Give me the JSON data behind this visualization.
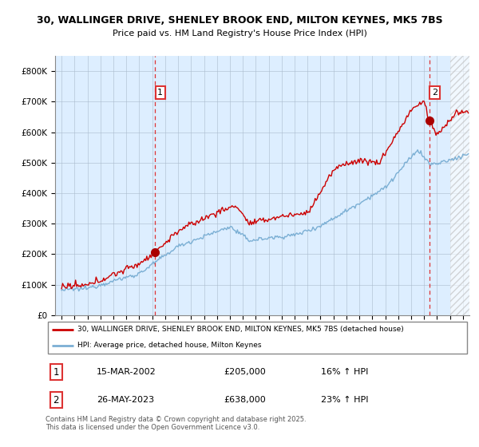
{
  "title_line1": "30, WALLINGER DRIVE, SHENLEY BROOK END, MILTON KEYNES, MK5 7BS",
  "title_line2": "Price paid vs. HM Land Registry's House Price Index (HPI)",
  "ylim": [
    0,
    850000
  ],
  "yticks": [
    0,
    100000,
    200000,
    300000,
    400000,
    500000,
    600000,
    700000,
    800000
  ],
  "ytick_labels": [
    "£0",
    "£100K",
    "£200K",
    "£300K",
    "£400K",
    "£500K",
    "£600K",
    "£700K",
    "£800K"
  ],
  "xlim_start": 1994.5,
  "xlim_end": 2026.5,
  "transaction1_x": 2002.21,
  "transaction1_y": 205000,
  "transaction1_label": "1",
  "transaction2_x": 2023.4,
  "transaction2_y": 638000,
  "transaction2_label": "2",
  "red_line_color": "#cc0000",
  "blue_line_color": "#7bafd4",
  "plot_bg_color": "#ddeeff",
  "grid_color": "#aabbcc",
  "background_color": "#ffffff",
  "legend_line1": "30, WALLINGER DRIVE, SHENLEY BROOK END, MILTON KEYNES, MK5 7BS (detached house)",
  "legend_line2": "HPI: Average price, detached house, Milton Keynes",
  "annotation1_date": "15-MAR-2002",
  "annotation1_price": "£205,000",
  "annotation1_hpi": "16% ↑ HPI",
  "annotation2_date": "26-MAY-2023",
  "annotation2_price": "£638,000",
  "annotation2_hpi": "23% ↑ HPI",
  "footer": "Contains HM Land Registry data © Crown copyright and database right 2025.\nThis data is licensed under the Open Government Licence v3.0.",
  "vline_color": "#dd3333",
  "marker_color": "#aa0000",
  "hatch_start": 2025.0,
  "hatch_color": "#bbbbbb"
}
